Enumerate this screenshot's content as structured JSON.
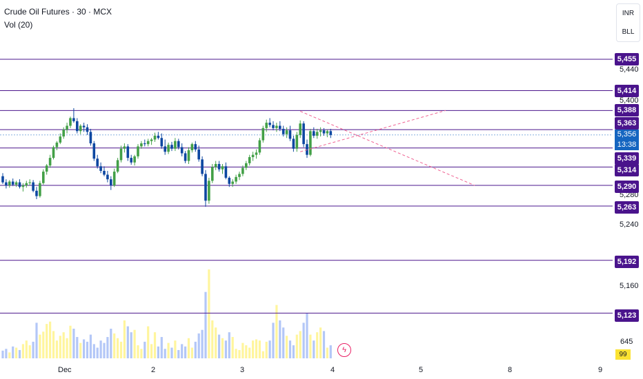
{
  "header": {
    "title": "Crude Oil Futures · 30 · MCX",
    "indicator": "Vol (20)"
  },
  "currency": {
    "top": "INR",
    "bottom": "BLL"
  },
  "colors": {
    "up": "#43a047",
    "down": "#0d47a1",
    "level": "#4a148c",
    "last": "#1565c0",
    "vol_up": "#fff59d",
    "vol_down": "#b3c7f7",
    "pattern": "#f06292"
  },
  "levels": [
    "5,455",
    "5,414",
    "5,388",
    "5,363",
    "5,339",
    "5,314",
    "5,290",
    "5,263",
    "5,192",
    "5,123"
  ],
  "price_labels": [
    "5,440",
    "5,400",
    "5,280",
    "5,240",
    "5,160"
  ],
  "last_price": {
    "value": "5,356",
    "countdown": "13:38"
  },
  "volume": {
    "label": "645",
    "badge": "99"
  },
  "x_labels": [
    "Dec",
    "2",
    "3",
    "4",
    "5",
    "8",
    "9"
  ],
  "bolt_icon": "ϟ",
  "chart_data": {
    "type": "candlestick",
    "title": "Crude Oil Futures · 30 · MCX",
    "indicator": "Vol (20)",
    "y_axis_range": [
      5100,
      5470
    ],
    "horizontal_levels": [
      5455,
      5414,
      5388,
      5363,
      5339,
      5314,
      5290,
      5263,
      5192,
      5123
    ],
    "last_price": 5356,
    "candles": [
      [
        5302,
        5306,
        5292,
        5294
      ],
      [
        5294,
        5298,
        5286,
        5290
      ],
      [
        5290,
        5297,
        5287,
        5295
      ],
      [
        5295,
        5299,
        5289,
        5291
      ],
      [
        5291,
        5296,
        5288,
        5294
      ],
      [
        5294,
        5298,
        5286,
        5288
      ],
      [
        5288,
        5293,
        5282,
        5290
      ],
      [
        5290,
        5296,
        5287,
        5293
      ],
      [
        5293,
        5298,
        5290,
        5294
      ],
      [
        5294,
        5297,
        5281,
        5283
      ],
      [
        5283,
        5288,
        5272,
        5276
      ],
      [
        5276,
        5296,
        5274,
        5293
      ],
      [
        5293,
        5311,
        5291,
        5308
      ],
      [
        5308,
        5318,
        5304,
        5316
      ],
      [
        5316,
        5330,
        5313,
        5326
      ],
      [
        5326,
        5342,
        5324,
        5340
      ],
      [
        5340,
        5348,
        5336,
        5346
      ],
      [
        5346,
        5358,
        5344,
        5354
      ],
      [
        5354,
        5366,
        5351,
        5363
      ],
      [
        5363,
        5372,
        5358,
        5368
      ],
      [
        5368,
        5380,
        5365,
        5378
      ],
      [
        5378,
        5391,
        5372,
        5374
      ],
      [
        5374,
        5378,
        5358,
        5361
      ],
      [
        5361,
        5370,
        5357,
        5368
      ],
      [
        5368,
        5372,
        5360,
        5366
      ],
      [
        5366,
        5370,
        5356,
        5360
      ],
      [
        5360,
        5364,
        5342,
        5345
      ],
      [
        5345,
        5348,
        5322,
        5325
      ],
      [
        5325,
        5330,
        5312,
        5315
      ],
      [
        5315,
        5320,
        5306,
        5309
      ],
      [
        5309,
        5315,
        5302,
        5304
      ],
      [
        5304,
        5309,
        5294,
        5298
      ],
      [
        5298,
        5302,
        5284,
        5290
      ],
      [
        5290,
        5312,
        5288,
        5308
      ],
      [
        5308,
        5326,
        5306,
        5323
      ],
      [
        5323,
        5342,
        5320,
        5338
      ],
      [
        5338,
        5345,
        5333,
        5341
      ],
      [
        5341,
        5344,
        5322,
        5326
      ],
      [
        5326,
        5330,
        5317,
        5320
      ],
      [
        5320,
        5330,
        5316,
        5328
      ],
      [
        5328,
        5344,
        5325,
        5341
      ],
      [
        5341,
        5348,
        5338,
        5345
      ],
      [
        5345,
        5350,
        5341,
        5344
      ],
      [
        5344,
        5351,
        5341,
        5348
      ],
      [
        5348,
        5352,
        5343,
        5350
      ],
      [
        5350,
        5359,
        5347,
        5355
      ],
      [
        5355,
        5360,
        5350,
        5352
      ],
      [
        5352,
        5358,
        5338,
        5341
      ],
      [
        5341,
        5350,
        5330,
        5334
      ],
      [
        5334,
        5346,
        5331,
        5343
      ],
      [
        5343,
        5347,
        5335,
        5338
      ],
      [
        5338,
        5352,
        5335,
        5348
      ],
      [
        5348,
        5351,
        5337,
        5340
      ],
      [
        5340,
        5345,
        5328,
        5332
      ],
      [
        5332,
        5335,
        5319,
        5322
      ],
      [
        5322,
        5340,
        5318,
        5336
      ],
      [
        5336,
        5346,
        5333,
        5344
      ],
      [
        5344,
        5348,
        5334,
        5337
      ],
      [
        5337,
        5342,
        5321,
        5324
      ],
      [
        5324,
        5328,
        5302,
        5305
      ],
      [
        5305,
        5310,
        5262,
        5270
      ],
      [
        5270,
        5300,
        5266,
        5296
      ],
      [
        5296,
        5318,
        5293,
        5314
      ],
      [
        5314,
        5322,
        5310,
        5318
      ],
      [
        5318,
        5322,
        5308,
        5311
      ],
      [
        5311,
        5318,
        5305,
        5315
      ],
      [
        5315,
        5320,
        5298,
        5300
      ],
      [
        5300,
        5302,
        5288,
        5292
      ],
      [
        5292,
        5298,
        5288,
        5295
      ],
      [
        5295,
        5304,
        5292,
        5301
      ],
      [
        5301,
        5308,
        5297,
        5305
      ],
      [
        5305,
        5316,
        5302,
        5313
      ],
      [
        5313,
        5322,
        5310,
        5319
      ],
      [
        5319,
        5330,
        5316,
        5327
      ],
      [
        5327,
        5334,
        5322,
        5330
      ],
      [
        5330,
        5337,
        5325,
        5333
      ],
      [
        5333,
        5352,
        5330,
        5349
      ],
      [
        5349,
        5368,
        5346,
        5365
      ],
      [
        5365,
        5376,
        5360,
        5372
      ],
      [
        5372,
        5378,
        5366,
        5369
      ],
      [
        5369,
        5374,
        5362,
        5365
      ],
      [
        5365,
        5372,
        5360,
        5368
      ],
      [
        5368,
        5374,
        5361,
        5364
      ],
      [
        5364,
        5368,
        5354,
        5357
      ],
      [
        5357,
        5366,
        5352,
        5362
      ],
      [
        5362,
        5368,
        5348,
        5351
      ],
      [
        5351,
        5355,
        5334,
        5338
      ],
      [
        5338,
        5360,
        5334,
        5356
      ],
      [
        5356,
        5375,
        5352,
        5371
      ],
      [
        5371,
        5374,
        5340,
        5344
      ],
      [
        5344,
        5350,
        5326,
        5330
      ],
      [
        5330,
        5364,
        5328,
        5361
      ],
      [
        5361,
        5366,
        5352,
        5355
      ],
      [
        5355,
        5364,
        5351,
        5360
      ],
      [
        5360,
        5366,
        5354,
        5362
      ],
      [
        5362,
        5365,
        5355,
        5358
      ],
      [
        5358,
        5363,
        5353,
        5361
      ],
      [
        5361,
        5364,
        5352,
        5356
      ]
    ],
    "volumes": [
      13,
      16,
      10,
      20,
      18,
      14,
      24,
      30,
      22,
      28,
      60,
      40,
      45,
      58,
      62,
      46,
      30,
      38,
      44,
      34,
      55,
      50,
      36,
      26,
      32,
      28,
      40,
      24,
      18,
      30,
      26,
      36,
      50,
      42,
      34,
      28,
      64,
      54,
      44,
      48,
      22,
      16,
      28,
      54,
      24,
      44,
      20,
      36,
      16,
      26,
      18,
      30,
      14,
      24,
      20,
      34,
      18,
      28,
      42,
      48,
      112,
      150,
      64,
      52,
      40,
      34,
      30,
      44,
      36,
      16,
      14,
      26,
      22,
      18,
      30,
      32,
      30,
      12,
      28,
      30,
      60,
      90,
      64,
      52,
      38,
      30,
      22,
      40,
      46,
      60,
      76,
      40,
      30,
      44,
      52,
      46,
      18,
      22
    ],
    "x_tick_labels": [
      "Dec",
      "2",
      "3",
      "4",
      "5",
      "8",
      "9"
    ]
  }
}
